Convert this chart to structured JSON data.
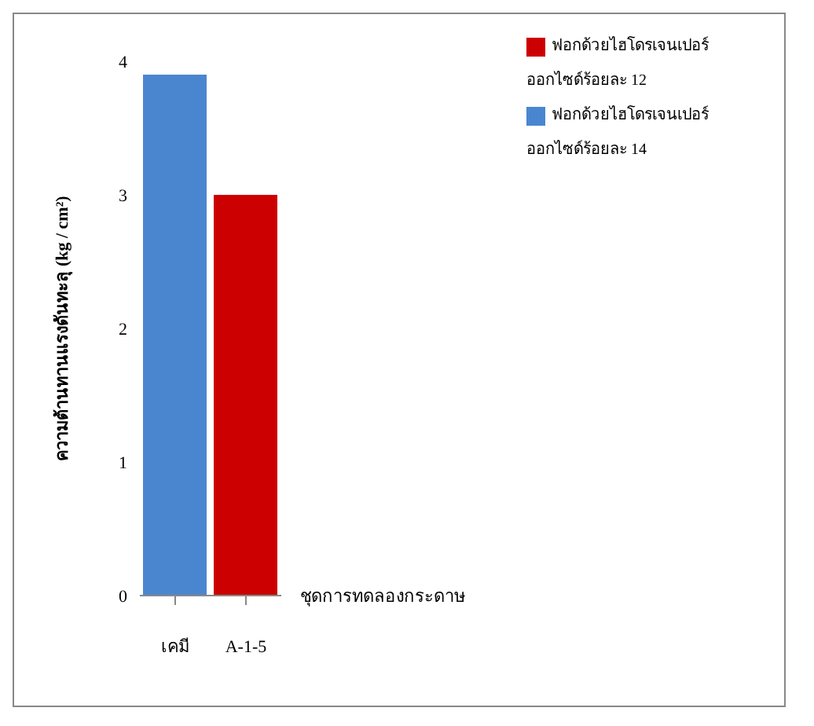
{
  "chart_data": {
    "type": "bar",
    "categories": [
      "เคมี",
      "A-1-5"
    ],
    "series": [
      {
        "name": "ฟอกด้วยไฮโดรเจนเปอร์ออกไซด์ร้อยละ 14",
        "color": "#4a86d0",
        "values": [
          3.9,
          null
        ]
      },
      {
        "name": "ฟอกด้วยไฮโดรเจนเปอร์ออกไซด์ร้อยละ 12",
        "color": "#cc0000",
        "values": [
          null,
          3.0
        ]
      }
    ],
    "stacked": true,
    "xlabel": "ชุดการทดลองกระดาษ",
    "ylabel": "ความต้านทานแรงดันทะลุ (kg / cm²)",
    "ylim": [
      0,
      4
    ],
    "yticks": [
      0,
      1,
      2,
      3,
      4
    ],
    "grid": false,
    "legend": "top right"
  }
}
